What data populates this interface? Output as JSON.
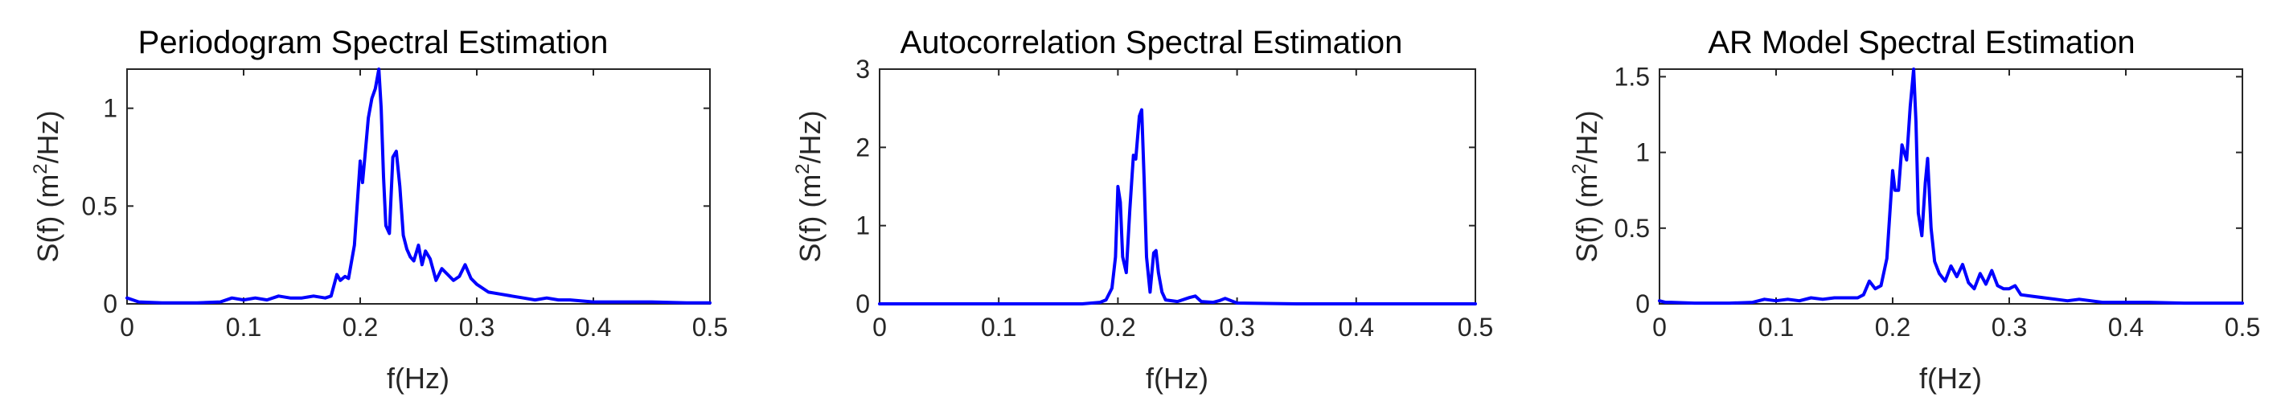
{
  "chart_data": [
    {
      "type": "line",
      "title": "Periodogram Spectral Estimation",
      "xlabel": "f(Hz)",
      "ylabel": "S(f) (m²/Hz)",
      "xlim": [
        0,
        0.5
      ],
      "ylim": [
        0,
        1.2
      ],
      "xticks": [
        0,
        0.1,
        0.2,
        0.3,
        0.4,
        0.5
      ],
      "xtick_labels": [
        "0",
        "0.1",
        "0.2",
        "0.3",
        "0.4",
        "0.5"
      ],
      "yticks": [
        0,
        0.5,
        1
      ],
      "ytick_labels": [
        "0",
        "0.5",
        "1"
      ],
      "grid": false,
      "series": [
        {
          "color": "#0000ff",
          "x": [
            0,
            0.005,
            0.01,
            0.03,
            0.06,
            0.08,
            0.09,
            0.1,
            0.11,
            0.12,
            0.13,
            0.14,
            0.15,
            0.16,
            0.17,
            0.175,
            0.18,
            0.183,
            0.187,
            0.19,
            0.195,
            0.2,
            0.202,
            0.204,
            0.207,
            0.21,
            0.213,
            0.216,
            0.218,
            0.22,
            0.222,
            0.225,
            0.228,
            0.231,
            0.234,
            0.237,
            0.24,
            0.243,
            0.246,
            0.25,
            0.253,
            0.256,
            0.26,
            0.265,
            0.27,
            0.275,
            0.28,
            0.285,
            0.29,
            0.295,
            0.3,
            0.31,
            0.32,
            0.33,
            0.34,
            0.35,
            0.36,
            0.37,
            0.38,
            0.4,
            0.42,
            0.45,
            0.48,
            0.5
          ],
          "y": [
            0.03,
            0.02,
            0.01,
            0.005,
            0.005,
            0.01,
            0.03,
            0.02,
            0.03,
            0.02,
            0.04,
            0.03,
            0.03,
            0.04,
            0.03,
            0.04,
            0.15,
            0.12,
            0.14,
            0.13,
            0.3,
            0.73,
            0.62,
            0.75,
            0.95,
            1.05,
            1.1,
            1.2,
            1.0,
            0.65,
            0.4,
            0.36,
            0.75,
            0.78,
            0.6,
            0.35,
            0.28,
            0.24,
            0.22,
            0.3,
            0.2,
            0.27,
            0.23,
            0.12,
            0.18,
            0.15,
            0.12,
            0.14,
            0.2,
            0.13,
            0.1,
            0.06,
            0.05,
            0.04,
            0.03,
            0.02,
            0.03,
            0.02,
            0.02,
            0.01,
            0.01,
            0.01,
            0.005,
            0.005
          ]
        }
      ]
    },
    {
      "type": "line",
      "title": "Autocorrelation Spectral Estimation",
      "xlabel": "f(Hz)",
      "ylabel": "S(f) (m²/Hz)",
      "xlim": [
        0,
        0.5
      ],
      "ylim": [
        0,
        3
      ],
      "xticks": [
        0,
        0.1,
        0.2,
        0.3,
        0.4,
        0.5
      ],
      "xtick_labels": [
        "0",
        "0.1",
        "0.2",
        "0.3",
        "0.4",
        "0.5"
      ],
      "yticks": [
        0,
        1,
        2,
        3
      ],
      "ytick_labels": [
        "0",
        "1",
        "2",
        "3"
      ],
      "grid": false,
      "series": [
        {
          "color": "#0000ff",
          "x": [
            0,
            0.1,
            0.17,
            0.185,
            0.19,
            0.195,
            0.198,
            0.2,
            0.202,
            0.204,
            0.207,
            0.21,
            0.213,
            0.215,
            0.218,
            0.22,
            0.222,
            0.224,
            0.227,
            0.23,
            0.232,
            0.234,
            0.237,
            0.24,
            0.25,
            0.26,
            0.265,
            0.27,
            0.28,
            0.285,
            0.29,
            0.3,
            0.35,
            0.4,
            0.5
          ],
          "y": [
            0,
            0,
            0,
            0.02,
            0.05,
            0.2,
            0.6,
            1.5,
            1.3,
            0.6,
            0.4,
            1.2,
            1.9,
            1.85,
            2.4,
            2.48,
            1.6,
            0.6,
            0.15,
            0.65,
            0.68,
            0.4,
            0.15,
            0.05,
            0.03,
            0.08,
            0.1,
            0.03,
            0.02,
            0.04,
            0.07,
            0.01,
            0,
            0,
            0
          ]
        }
      ]
    },
    {
      "type": "line",
      "title": "AR Model Spectral Estimation",
      "xlabel": "f(Hz)",
      "ylabel": "S(f) (m²/Hz)",
      "xlim": [
        0,
        0.5
      ],
      "ylim": [
        0,
        1.55
      ],
      "xticks": [
        0,
        0.1,
        0.2,
        0.3,
        0.4,
        0.5
      ],
      "xtick_labels": [
        "0",
        "0.1",
        "0.2",
        "0.3",
        "0.4",
        "0.5"
      ],
      "yticks": [
        0,
        0.5,
        1,
        1.5
      ],
      "ytick_labels": [
        "0",
        "0.5",
        "1",
        "1.5"
      ],
      "grid": false,
      "series": [
        {
          "color": "#0000ff",
          "x": [
            0,
            0.005,
            0.01,
            0.03,
            0.06,
            0.08,
            0.09,
            0.1,
            0.11,
            0.12,
            0.13,
            0.14,
            0.15,
            0.16,
            0.17,
            0.175,
            0.18,
            0.185,
            0.19,
            0.195,
            0.2,
            0.202,
            0.205,
            0.208,
            0.21,
            0.212,
            0.215,
            0.218,
            0.22,
            0.222,
            0.225,
            0.228,
            0.23,
            0.233,
            0.236,
            0.24,
            0.245,
            0.25,
            0.255,
            0.26,
            0.265,
            0.27,
            0.275,
            0.28,
            0.285,
            0.29,
            0.295,
            0.3,
            0.305,
            0.31,
            0.32,
            0.33,
            0.34,
            0.35,
            0.36,
            0.37,
            0.38,
            0.4,
            0.42,
            0.45,
            0.48,
            0.5
          ],
          "y": [
            0.02,
            0.01,
            0.01,
            0.005,
            0.005,
            0.01,
            0.03,
            0.02,
            0.03,
            0.02,
            0.04,
            0.03,
            0.04,
            0.04,
            0.04,
            0.06,
            0.15,
            0.1,
            0.12,
            0.3,
            0.88,
            0.75,
            0.75,
            1.05,
            1.0,
            0.95,
            1.3,
            1.55,
            1.2,
            0.6,
            0.45,
            0.8,
            0.96,
            0.5,
            0.28,
            0.2,
            0.15,
            0.25,
            0.18,
            0.26,
            0.14,
            0.1,
            0.2,
            0.13,
            0.22,
            0.12,
            0.1,
            0.1,
            0.12,
            0.06,
            0.05,
            0.04,
            0.03,
            0.02,
            0.03,
            0.02,
            0.01,
            0.01,
            0.01,
            0.005,
            0.005,
            0.005
          ]
        }
      ]
    }
  ]
}
